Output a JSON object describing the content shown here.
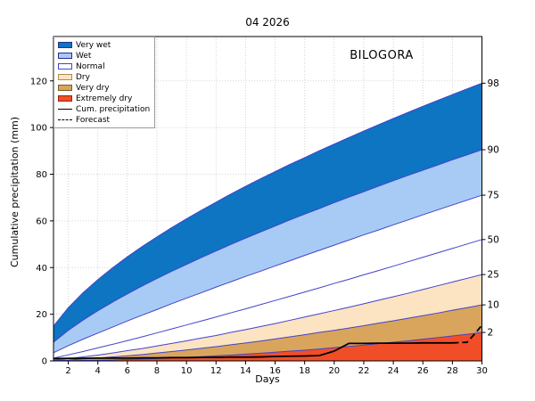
{
  "figure": {
    "title": "04 2026",
    "station": "BILOGORA",
    "xlabel": "Days",
    "ylabel": "Cumulative precipitation (mm)"
  },
  "colors": {
    "very_wet": "#0d75c2",
    "wet": "#a8cbf6",
    "normal": "#ffffff",
    "dry": "#fce3c1",
    "very_dry": "#d9a55c",
    "extremely_dry": "#f14e28",
    "boundary_line": "#4343cb",
    "observed_line": "#000000",
    "grid": "#c9c9c9",
    "spine": "#000000"
  },
  "legend": {
    "items": [
      {
        "label": "Very wet",
        "type": "patch",
        "color": "#0d75c2",
        "edge": "#2b2b8f"
      },
      {
        "label": "Wet",
        "type": "patch",
        "color": "#a8cbf6",
        "edge": "#2b2b8f"
      },
      {
        "label": "Normal",
        "type": "patch",
        "color": "#ffffff",
        "edge": "#4444cc"
      },
      {
        "label": "Dry",
        "type": "patch",
        "color": "#fce3c1",
        "edge": "#b08a50"
      },
      {
        "label": "Very dry",
        "type": "patch",
        "color": "#d9a55c",
        "edge": "#7a5a20"
      },
      {
        "label": "Extremely dry",
        "type": "patch",
        "color": "#f14e28",
        "edge": "#992211"
      },
      {
        "label": "Cum. precipitation",
        "type": "line",
        "style": "solid"
      },
      {
        "label": "Forecast",
        "type": "line",
        "style": "dashed"
      }
    ]
  },
  "chart_data": {
    "type": "area",
    "title": "04 2026",
    "station": "BILOGORA",
    "xlabel": "Days",
    "ylabel": "Cumulative precipitation (mm)",
    "xlim": [
      1,
      30
    ],
    "ylim": [
      0,
      139
    ],
    "grid": true,
    "legend_position": "upper left",
    "xticks": [
      2,
      4,
      6,
      8,
      10,
      12,
      14,
      16,
      18,
      20,
      22,
      24,
      26,
      28,
      30
    ],
    "yticks": [
      0,
      20,
      40,
      60,
      80,
      100,
      120
    ],
    "right_axis_ticks": [
      {
        "label": "98",
        "value": 119.0
      },
      {
        "label": "90",
        "value": 90.5
      },
      {
        "label": "75",
        "value": 71.0
      },
      {
        "label": "50",
        "value": 52.0
      },
      {
        "label": "25",
        "value": 37.0
      },
      {
        "label": "10",
        "value": 24.0
      },
      {
        "label": "2",
        "value": 12.2
      }
    ],
    "percentiles": {
      "x": [
        1,
        2,
        3,
        4,
        5,
        6,
        7,
        8,
        9,
        10,
        11,
        12,
        13,
        14,
        15,
        16,
        17,
        18,
        19,
        20,
        21,
        22,
        23,
        24,
        25,
        26,
        27,
        28,
        29,
        30
      ],
      "p98": [
        14.9,
        22.8,
        29.2,
        34.8,
        39.9,
        44.6,
        49.0,
        53.1,
        57.1,
        60.9,
        64.5,
        68.0,
        71.5,
        74.8,
        78.0,
        81.1,
        84.2,
        87.1,
        90.1,
        92.9,
        95.7,
        98.5,
        101.2,
        103.9,
        106.5,
        109.1,
        111.6,
        114.1,
        116.6,
        119.0
      ],
      "p90": [
        8.0,
        13.1,
        17.5,
        21.5,
        25.2,
        28.7,
        32.1,
        35.3,
        38.4,
        41.3,
        44.3,
        47.1,
        49.9,
        52.6,
        55.2,
        57.8,
        60.4,
        62.9,
        65.3,
        67.8,
        70.2,
        72.5,
        74.9,
        77.2,
        79.5,
        81.7,
        83.9,
        86.2,
        88.3,
        90.5
      ],
      "p75": [
        3.5,
        6.5,
        9.3,
        11.9,
        14.5,
        17.1,
        19.6,
        22.0,
        24.5,
        26.9,
        29.2,
        31.6,
        33.9,
        36.2,
        38.4,
        40.7,
        42.9,
        45.2,
        47.4,
        49.6,
        51.8,
        54.0,
        56.1,
        58.3,
        60.4,
        62.6,
        64.7,
        66.8,
        68.9,
        71.0
      ],
      "p50": [
        1.2,
        2.6,
        4.0,
        5.6,
        7.1,
        8.7,
        10.3,
        12.0,
        13.7,
        15.4,
        17.1,
        18.8,
        20.6,
        22.3,
        24.1,
        25.9,
        27.7,
        29.5,
        31.3,
        33.2,
        35.0,
        36.9,
        38.7,
        40.6,
        42.5,
        44.4,
        46.3,
        48.2,
        50.1,
        52.0
      ],
      "p25": [
        0.4,
        1.0,
        1.7,
        2.5,
        3.4,
        4.4,
        5.3,
        6.4,
        7.5,
        8.6,
        9.8,
        10.9,
        12.2,
        13.4,
        14.7,
        16.0,
        17.4,
        18.8,
        20.2,
        21.6,
        23.0,
        24.5,
        26.0,
        27.5,
        29.0,
        30.6,
        32.2,
        33.8,
        35.4,
        37.0
      ],
      "p10": [
        0.2,
        0.4,
        0.8,
        1.2,
        1.7,
        2.2,
        2.7,
        3.4,
        4.0,
        4.7,
        5.4,
        6.1,
        6.9,
        7.7,
        8.5,
        9.4,
        10.3,
        11.2,
        12.2,
        13.1,
        14.1,
        15.1,
        16.2,
        17.2,
        18.3,
        19.4,
        20.5,
        21.7,
        22.8,
        24.0
      ],
      "p2": [
        0.0,
        0.1,
        0.2,
        0.3,
        0.4,
        0.6,
        0.8,
        1.0,
        1.3,
        1.5,
        1.8,
        2.2,
        2.5,
        2.9,
        3.3,
        3.7,
        4.2,
        4.6,
        5.1,
        5.7,
        6.2,
        6.8,
        7.4,
        8.0,
        8.6,
        9.3,
        10.0,
        10.7,
        11.4,
        12.2
      ]
    },
    "bands": [
      {
        "name": "Very wet",
        "upper": "p98",
        "lower": "p90",
        "color": "#0d75c2"
      },
      {
        "name": "Wet",
        "upper": "p90",
        "lower": "p75",
        "color": "#a8cbf6"
      },
      {
        "name": "Normal",
        "upper": "p75",
        "lower": "p25",
        "color": "#ffffff"
      },
      {
        "name": "Dry",
        "upper": "p25",
        "lower": "p10",
        "color": "#fce3c1"
      },
      {
        "name": "Very dry",
        "upper": "p10",
        "lower": "p2",
        "color": "#d9a55c"
      },
      {
        "name": "Extremely dry",
        "upper": "p2",
        "lower": "zero",
        "color": "#f14e28"
      }
    ],
    "median_line": "p50",
    "boundary_lines": [
      "p98",
      "p90",
      "p75",
      "p50",
      "p25",
      "p10",
      "p2"
    ],
    "cum_precipitation": {
      "x": [
        1,
        2,
        3,
        4,
        5,
        6,
        7,
        8,
        9,
        10,
        11,
        12,
        13,
        14,
        15,
        16,
        17,
        18,
        19,
        20,
        21,
        22,
        23,
        24,
        25,
        26,
        27,
        28
      ],
      "y": [
        1.0,
        1.1,
        1.1,
        1.2,
        1.2,
        1.2,
        1.3,
        1.3,
        1.4,
        1.4,
        1.5,
        1.5,
        1.6,
        1.6,
        1.7,
        1.9,
        2.0,
        2.1,
        2.3,
        4.2,
        7.5,
        7.5,
        7.6,
        7.6,
        7.6,
        7.7,
        7.7,
        7.7
      ]
    },
    "forecast": {
      "x": [
        28,
        29,
        29.5,
        30
      ],
      "y": [
        7.7,
        8.0,
        11.5,
        15.3
      ]
    }
  }
}
